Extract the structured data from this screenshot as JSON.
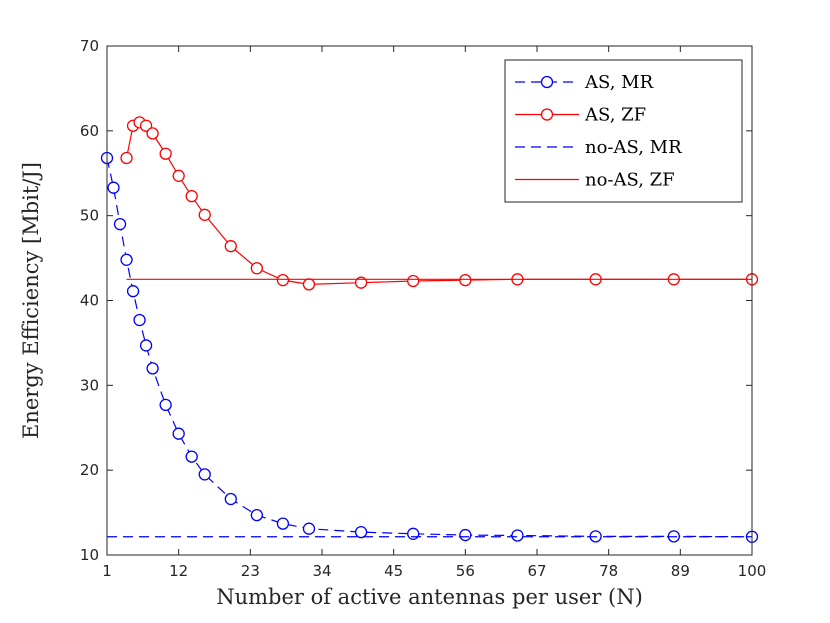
{
  "chart_data": {
    "type": "line",
    "xlabel": "Number of active antennas per user (N)",
    "ylabel": "Energy Efficiency [Mbit/J]",
    "xlim": [
      1,
      100
    ],
    "ylim": [
      10,
      70
    ],
    "xticks": [
      1,
      12,
      23,
      34,
      45,
      56,
      67,
      78,
      89,
      100
    ],
    "xtick_labels": [
      "1",
      "12",
      "23",
      "34",
      "45",
      "56",
      "67",
      "78",
      "89",
      "100"
    ],
    "yticks": [
      10,
      20,
      30,
      40,
      50,
      60,
      70
    ],
    "ytick_labels": [
      "10",
      "20",
      "30",
      "40",
      "50",
      "60",
      "70"
    ],
    "grid": false,
    "legend_position": "top-right",
    "series": [
      {
        "name": "AS, MR",
        "color": "#0000ff",
        "style": "dashed",
        "marker": "circle",
        "x": [
          1,
          2,
          3,
          4,
          5,
          6,
          7,
          8,
          10,
          12,
          14,
          16,
          20,
          24,
          28,
          32,
          40,
          48,
          56,
          64,
          76,
          88,
          100
        ],
        "y": [
          56.8,
          53.3,
          49.0,
          44.8,
          41.1,
          37.7,
          34.7,
          32.0,
          27.7,
          24.3,
          21.6,
          19.5,
          16.6,
          14.7,
          13.7,
          13.1,
          12.7,
          12.5,
          12.35,
          12.3,
          12.2,
          12.2,
          12.15
        ]
      },
      {
        "name": "AS, ZF",
        "color": "#ff0000",
        "style": "solid",
        "marker": "circle",
        "x": [
          4,
          5,
          6,
          7,
          8,
          10,
          12,
          14,
          16,
          20,
          24,
          28,
          32,
          40,
          48,
          56,
          64,
          76,
          88,
          100
        ],
        "y": [
          56.8,
          60.6,
          61.0,
          60.6,
          59.7,
          57.3,
          54.7,
          52.3,
          50.1,
          46.4,
          43.8,
          42.4,
          41.9,
          42.1,
          42.3,
          42.4,
          42.5,
          42.5,
          42.5,
          42.5
        ]
      },
      {
        "name": "no-AS, MR",
        "color": "#0000ff",
        "style": "dashed",
        "marker": "none",
        "x": [
          1,
          100
        ],
        "y": [
          12.15,
          12.15
        ]
      },
      {
        "name": "no-AS, ZF",
        "color": "#ff0000",
        "style": "solid",
        "marker": "none",
        "x": [
          4,
          100
        ],
        "y": [
          42.5,
          42.5
        ]
      }
    ]
  }
}
